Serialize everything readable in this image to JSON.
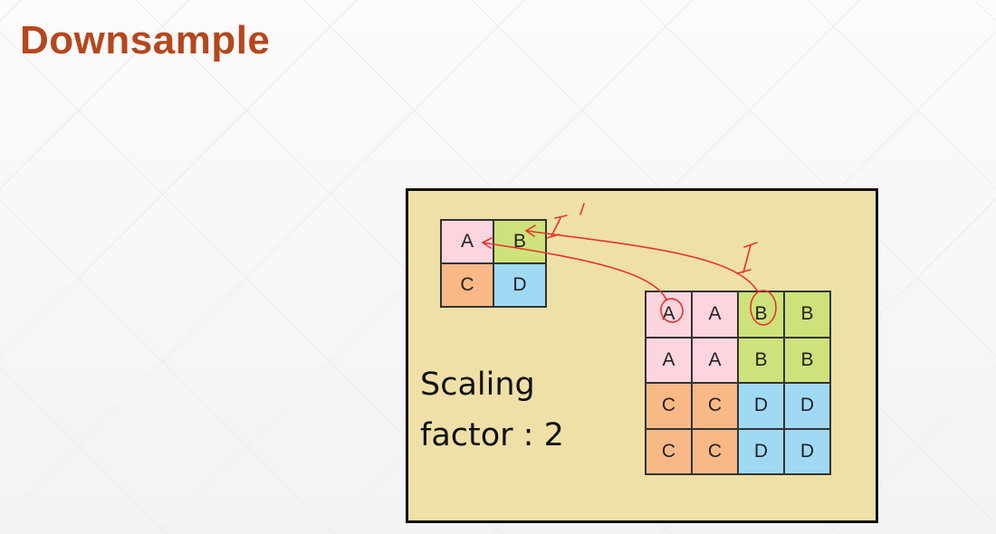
{
  "slide": {
    "title": "Downsample"
  },
  "diagram": {
    "caption_line1": "Scaling",
    "caption_line2": "factor : 2",
    "small_grid": [
      {
        "label": "A",
        "color": "#fcd5df"
      },
      {
        "label": "B",
        "color": "#cde27a"
      },
      {
        "label": "C",
        "color": "#f8b987"
      },
      {
        "label": "D",
        "color": "#9fd9f4"
      }
    ],
    "big_grid": [
      {
        "label": "A",
        "color": "#fcd5df"
      },
      {
        "label": "A",
        "color": "#fcd5df"
      },
      {
        "label": "B",
        "color": "#cde27a"
      },
      {
        "label": "B",
        "color": "#cde27a"
      },
      {
        "label": "A",
        "color": "#fcd5df"
      },
      {
        "label": "A",
        "color": "#fcd5df"
      },
      {
        "label": "B",
        "color": "#cde27a"
      },
      {
        "label": "B",
        "color": "#cde27a"
      },
      {
        "label": "C",
        "color": "#f8b987"
      },
      {
        "label": "C",
        "color": "#f8b987"
      },
      {
        "label": "D",
        "color": "#9fd9f4"
      },
      {
        "label": "D",
        "color": "#9fd9f4"
      },
      {
        "label": "C",
        "color": "#f8b987"
      },
      {
        "label": "C",
        "color": "#f8b987"
      },
      {
        "label": "D",
        "color": "#9fd9f4"
      },
      {
        "label": "D",
        "color": "#9fd9f4"
      }
    ],
    "annotation_labels": {
      "I_prime": "I'",
      "I": "I"
    },
    "annotation_color": "#e8322a",
    "panel_color": "#efe0a8"
  }
}
